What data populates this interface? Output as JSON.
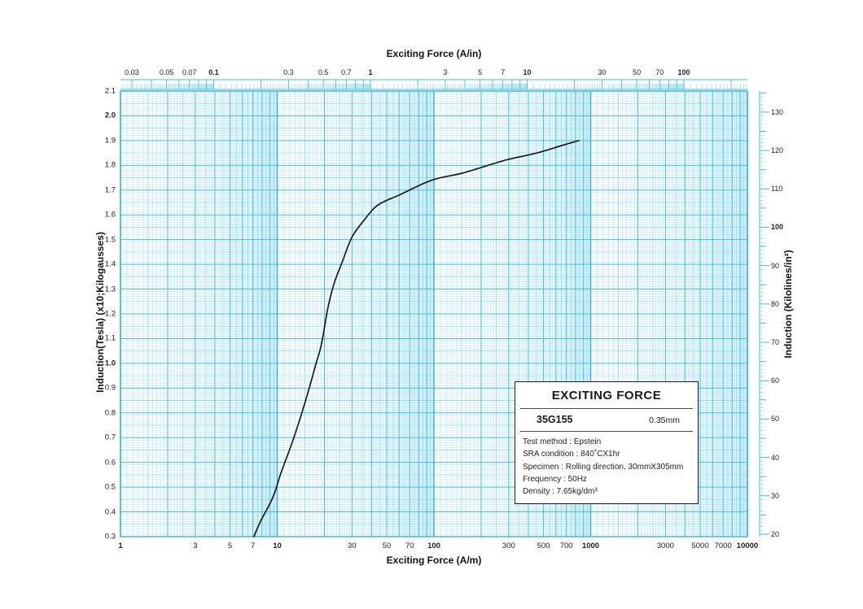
{
  "top_axis": {
    "title": "Exciting Force (A/in)",
    "ticks": [
      {
        "v": 0.03,
        "label": "0.03",
        "bold": false
      },
      {
        "v": 0.05,
        "label": "0.05",
        "bold": false
      },
      {
        "v": 0.07,
        "label": "0.07",
        "bold": false
      },
      {
        "v": 0.1,
        "label": "0.1",
        "bold": true
      },
      {
        "v": 0.3,
        "label": "0.3",
        "bold": false
      },
      {
        "v": 0.5,
        "label": "0.5",
        "bold": false
      },
      {
        "v": 0.7,
        "label": "0.7",
        "bold": false
      },
      {
        "v": 1,
        "label": "1",
        "bold": true
      },
      {
        "v": 3,
        "label": "3",
        "bold": false
      },
      {
        "v": 5,
        "label": "5",
        "bold": false
      },
      {
        "v": 7,
        "label": "7",
        "bold": false
      },
      {
        "v": 10,
        "label": "10",
        "bold": true
      },
      {
        "v": 30,
        "label": "30",
        "bold": false
      },
      {
        "v": 50,
        "label": "50",
        "bold": false
      },
      {
        "v": 70,
        "label": "70",
        "bold": false
      },
      {
        "v": 100,
        "label": "100",
        "bold": true
      }
    ]
  },
  "bottom_axis": {
    "title": "Exciting Force (A/m)",
    "ticks": [
      {
        "v": 1,
        "label": "1",
        "bold": true
      },
      {
        "v": 3,
        "label": "3",
        "bold": false
      },
      {
        "v": 5,
        "label": "5",
        "bold": false
      },
      {
        "v": 7,
        "label": "7",
        "bold": false
      },
      {
        "v": 10,
        "label": "10",
        "bold": true
      },
      {
        "v": 30,
        "label": "30",
        "bold": false
      },
      {
        "v": 50,
        "label": "50",
        "bold": false
      },
      {
        "v": 70,
        "label": "70",
        "bold": false
      },
      {
        "v": 100,
        "label": "100",
        "bold": true
      },
      {
        "v": 300,
        "label": "300",
        "bold": false
      },
      {
        "v": 500,
        "label": "500",
        "bold": false
      },
      {
        "v": 700,
        "label": "700",
        "bold": false
      },
      {
        "v": 1000,
        "label": "1000",
        "bold": true
      },
      {
        "v": 3000,
        "label": "3000",
        "bold": false
      },
      {
        "v": 5000,
        "label": "5000",
        "bold": false
      },
      {
        "v": 7000,
        "label": "7000",
        "bold": false
      },
      {
        "v": 10000,
        "label": "10000",
        "bold": true
      }
    ]
  },
  "left_axis": {
    "title": "Induction(Tesla) (x10;Kilogausses)",
    "ticks": [
      {
        "v": 2.1,
        "label": "2.1",
        "bold": false
      },
      {
        "v": 2.0,
        "label": "2.0",
        "bold": true
      },
      {
        "v": 1.9,
        "label": "1.9",
        "bold": false
      },
      {
        "v": 1.8,
        "label": "1.8",
        "bold": false
      },
      {
        "v": 1.7,
        "label": "1.7",
        "bold": false
      },
      {
        "v": 1.6,
        "label": "1.6",
        "bold": false
      },
      {
        "v": 1.5,
        "label": "1.5",
        "bold": false
      },
      {
        "v": 1.4,
        "label": "1.4",
        "bold": false
      },
      {
        "v": 1.3,
        "label": "1.3",
        "bold": false
      },
      {
        "v": 1.2,
        "label": "1.2",
        "bold": false
      },
      {
        "v": 1.1,
        "label": "1.1",
        "bold": false
      },
      {
        "v": 1.0,
        "label": "1.0",
        "bold": true
      },
      {
        "v": 0.9,
        "label": "0.9",
        "bold": false
      },
      {
        "v": 0.8,
        "label": "0.8",
        "bold": false
      },
      {
        "v": 0.7,
        "label": "0.7",
        "bold": false
      },
      {
        "v": 0.6,
        "label": "0.6",
        "bold": false
      },
      {
        "v": 0.5,
        "label": "0.5",
        "bold": false
      },
      {
        "v": 0.4,
        "label": "0.4",
        "bold": false
      },
      {
        "v": 0.3,
        "label": "0.3",
        "bold": false
      }
    ]
  },
  "right_axis": {
    "title": "Induction (Kilolines/in²)",
    "ticks": [
      {
        "v": 130,
        "label": "130",
        "bold": false
      },
      {
        "v": 120,
        "label": "120",
        "bold": false
      },
      {
        "v": 110,
        "label": "110",
        "bold": false
      },
      {
        "v": 100,
        "label": "100",
        "bold": true
      },
      {
        "v": 90,
        "label": "90",
        "bold": false
      },
      {
        "v": 80,
        "label": "80",
        "bold": false
      },
      {
        "v": 70,
        "label": "70",
        "bold": false
      },
      {
        "v": 60,
        "label": "60",
        "bold": false
      },
      {
        "v": 50,
        "label": "50",
        "bold": false
      },
      {
        "v": 40,
        "label": "40",
        "bold": false
      },
      {
        "v": 30,
        "label": "30",
        "bold": false
      },
      {
        "v": 20,
        "label": "20",
        "bold": false
      }
    ]
  },
  "legend": {
    "title": "EXCITING FORCE",
    "grade": "35G155",
    "thickness": "0.35mm",
    "lines": [
      "Test method : Epstein",
      "SRA condition : 840˚CX1hr",
      "Specimen : Rolling direction, 30mmX305mm",
      "Frequency : 50Hz",
      "Density : 7.65kg/dm³"
    ]
  },
  "chart_data": {
    "type": "line",
    "title": "EXCITING FORCE",
    "xlabel": "Exciting Force (A/m)",
    "xlabel_top": "Exciting Force (A/in)",
    "ylabel_left": "Induction(Tesla) (x10;Kilogausses)",
    "ylabel_right": "Induction (Kilolines/in²)",
    "x_scale": "log",
    "xlim": [
      1,
      10000
    ],
    "ylim": [
      0.3,
      2.1
    ],
    "right_axis_unit_conversion": 64.516,
    "right_ylim": [
      19.35,
      135.5
    ],
    "grid": true,
    "legend_position": "lower-right",
    "series": [
      {
        "name": "35G155",
        "points": [
          [
            7.1,
            0.3
          ],
          [
            7.8,
            0.36
          ],
          [
            9.4,
            0.46
          ],
          [
            10.6,
            0.56
          ],
          [
            12.3,
            0.67
          ],
          [
            14.2,
            0.79
          ],
          [
            16.0,
            0.9
          ],
          [
            17.7,
            1.0
          ],
          [
            19.2,
            1.08
          ],
          [
            21,
            1.22
          ],
          [
            23,
            1.32
          ],
          [
            26,
            1.41
          ],
          [
            30,
            1.51
          ],
          [
            36,
            1.58
          ],
          [
            44,
            1.64
          ],
          [
            60,
            1.68
          ],
          [
            97,
            1.74
          ],
          [
            155,
            1.77
          ],
          [
            283,
            1.82
          ],
          [
            455,
            1.85
          ],
          [
            654,
            1.88
          ],
          [
            840,
            1.9
          ]
        ]
      }
    ],
    "colors": {
      "grid_fine": "#b5e6f4",
      "grid_medium": "#8fd9ee",
      "grid_strong": "#3fbede",
      "grid_major": "#29aed4",
      "curve": "#1a1a1a",
      "ruler": "#3fbede"
    }
  }
}
